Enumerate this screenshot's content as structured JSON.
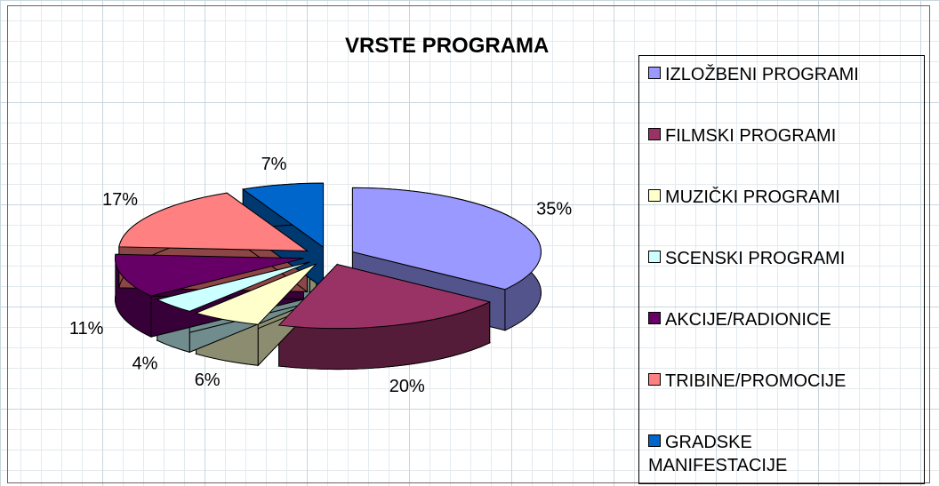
{
  "chart_data": {
    "type": "pie",
    "title": "VRSTE PROGRAMA",
    "categories": [
      "IZLOŽBENI PROGRAMI",
      "FILMSKI PROGRAMI",
      "MUZIČKI PROGRAMI",
      "SCENSKI PROGRAMI",
      "AKCIJE/RADIONICE",
      "TRIBINE/PROMOCIJE",
      "GRADSKE MANIFESTACIJE"
    ],
    "values": [
      35,
      20,
      6,
      4,
      11,
      17,
      7
    ],
    "value_labels": [
      "35%",
      "20%",
      "6%",
      "4%",
      "11%",
      "17%",
      "7%"
    ],
    "colors": [
      "#9999ff",
      "#993366",
      "#ffffcc",
      "#ccffff",
      "#660066",
      "#ff8080",
      "#0066cc"
    ],
    "legend": "right"
  }
}
